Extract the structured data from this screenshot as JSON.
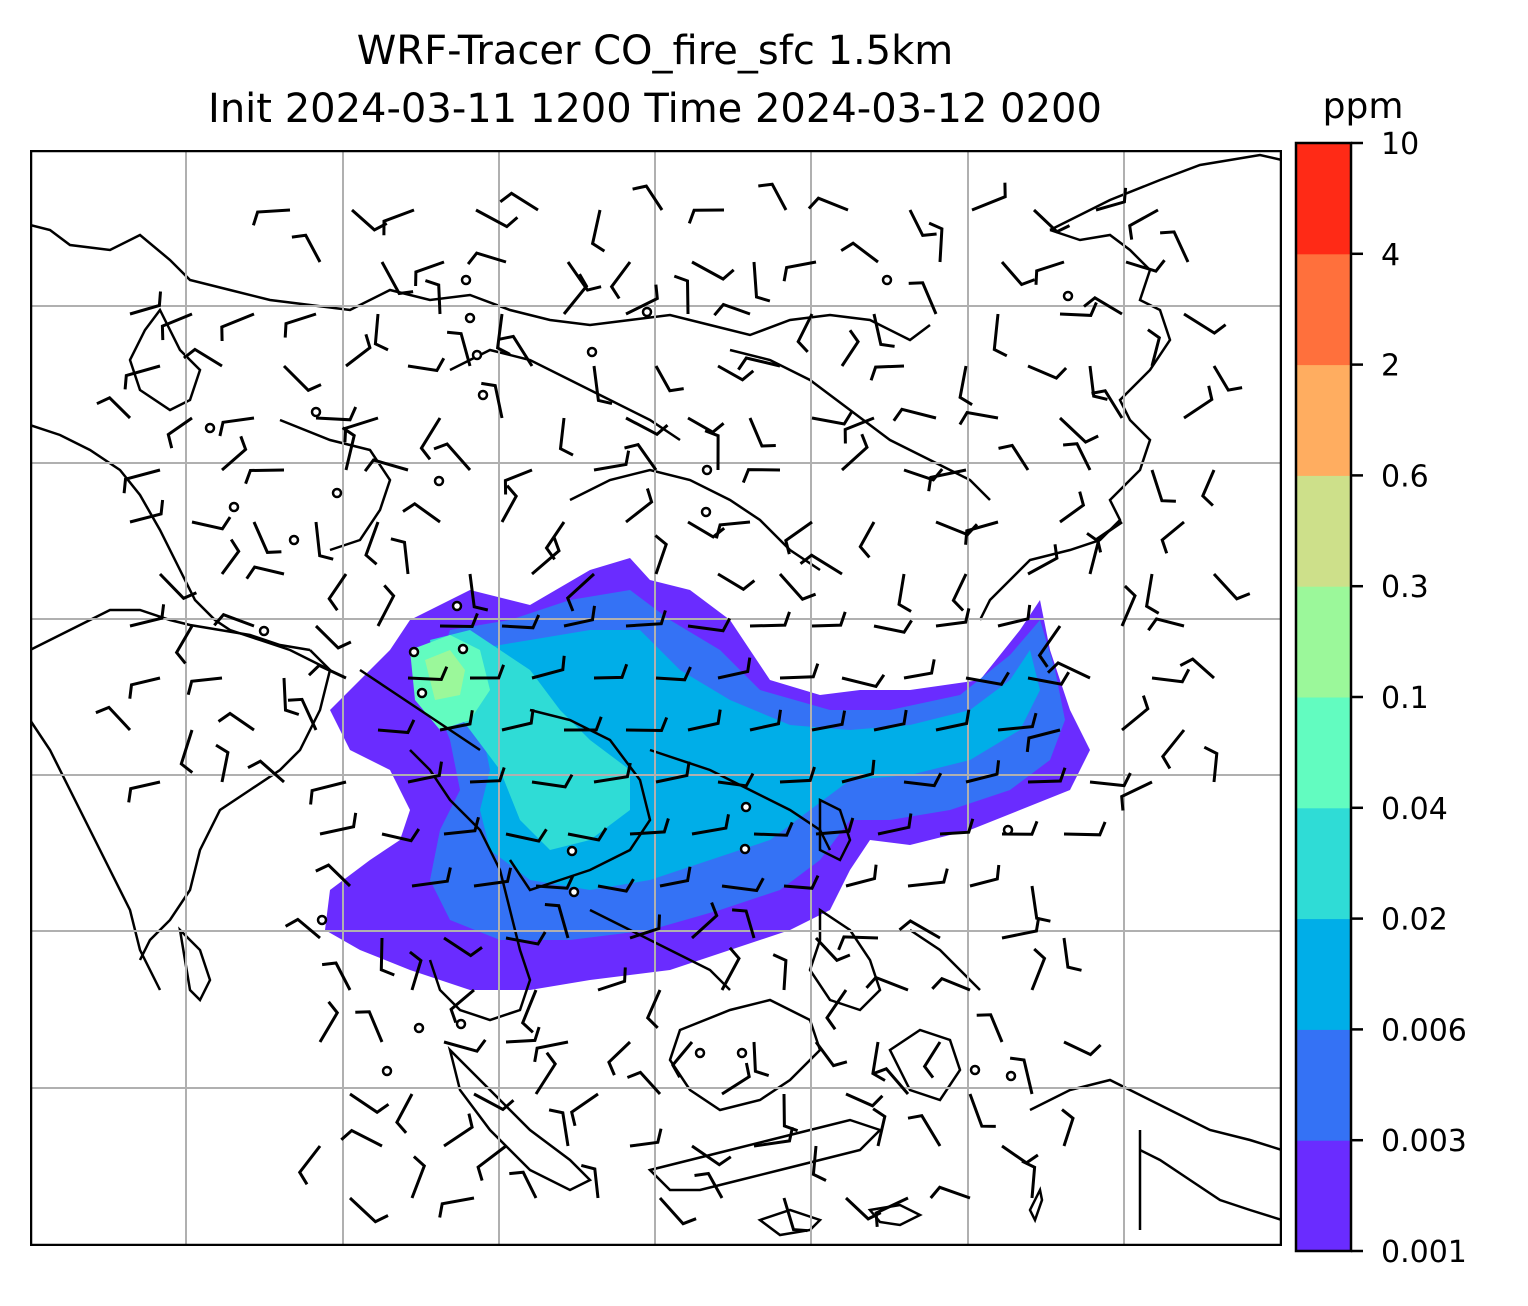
{
  "title": {
    "line1": "WRF-Tracer CO_fire_sfc 1.5km",
    "line2": "Init 2024-03-11 1200 Time 2024-03-12 0200"
  },
  "colorbar": {
    "unit": "ppm",
    "levels": [
      "0.001",
      "0.003",
      "0.006",
      "0.02",
      "0.04",
      "0.1",
      "0.3",
      "0.6",
      "2",
      "4",
      "10"
    ],
    "colors": [
      "#6a2cff",
      "#3472f5",
      "#00aee8",
      "#2fdcd6",
      "#62fcc0",
      "#9bf89a",
      "#cde08a",
      "#ffad60",
      "#ff703c",
      "#ff2a16"
    ]
  },
  "map": {
    "gridlines": true,
    "wind_barbs": true,
    "calm_markers": true
  }
}
